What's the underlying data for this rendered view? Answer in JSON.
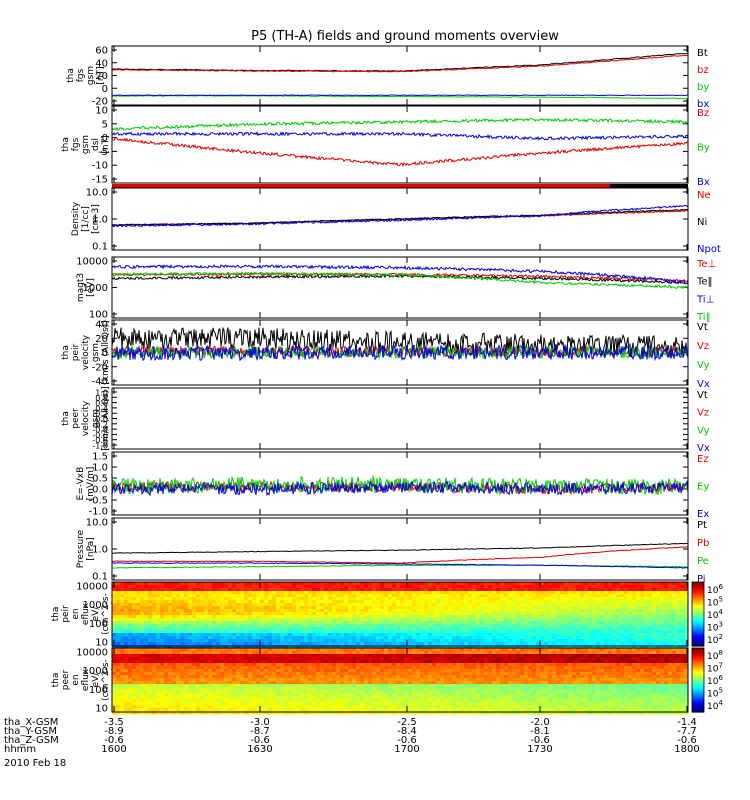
{
  "title": "P5 (TH-A) fields and ground moments overview",
  "colors": {
    "black": "#000000",
    "red": "#e00000",
    "green": "#00cc00",
    "blue": "#0000e0"
  },
  "panels": [
    {
      "key": "fgs_gsm",
      "ylabel": [
        "tha",
        "fgs",
        "gsm",
        "[nT]"
      ],
      "scale": "linear",
      "yticks": [
        "60",
        "40",
        "20",
        "0",
        "-20"
      ],
      "legend": [
        {
          "name": "Bt",
          "color": "#000000"
        },
        {
          "name": "bz",
          "color": "#e00000"
        },
        {
          "name": "by",
          "color": "#00cc00"
        },
        {
          "name": "bx",
          "color": "#0000e0"
        }
      ]
    },
    {
      "key": "fgs_dsl",
      "ylabel": [
        "tha",
        "fgs",
        "gsm",
        "dsl",
        "[nT]"
      ],
      "scale": "linear",
      "yticks": [
        "10",
        "5",
        "0",
        "-5",
        "-10",
        "-15"
      ],
      "legend": [
        {
          "name": "Bz",
          "color": "#e00000"
        },
        {
          "name": "By",
          "color": "#00cc00"
        },
        {
          "name": "Bx",
          "color": "#0000e0"
        }
      ]
    },
    {
      "key": "density",
      "ylabel": [
        "Density",
        "[1/cc]",
        "[cm-3]"
      ],
      "scale": "log",
      "yticks": [
        "10.0",
        "1.0",
        "0.1"
      ],
      "legend": [
        {
          "name": "Ne",
          "color": "#e00000"
        },
        {
          "name": "Ni",
          "color": "#000000"
        },
        {
          "name": "Npot",
          "color": "#0000e0"
        }
      ]
    },
    {
      "key": "temp",
      "ylabel": [
        "magt3",
        "[eV]"
      ],
      "scale": "log",
      "yticks": [
        "10000",
        "1000",
        "100"
      ],
      "legend": [
        {
          "name": "Te⊥",
          "color": "#e00000"
        },
        {
          "name": "Te‖",
          "color": "#000000"
        },
        {
          "name": "Ti⊥",
          "color": "#0000e0"
        },
        {
          "name": "Ti‖",
          "color": "#00cc00"
        }
      ]
    },
    {
      "key": "peir_vel",
      "ylabel": [
        "tha",
        "peir",
        "velocity",
        "gsm",
        "[km/s (All Qs)]"
      ],
      "scale": "linear",
      "yticks": [
        "40",
        "20",
        "0",
        "-20",
        "-40"
      ],
      "legend": [
        {
          "name": "Vt",
          "color": "#000000"
        },
        {
          "name": "Vz",
          "color": "#e00000"
        },
        {
          "name": "Vy",
          "color": "#00cc00"
        },
        {
          "name": "Vx",
          "color": "#0000e0"
        }
      ]
    },
    {
      "key": "peer_vel",
      "ylabel": [
        "tha",
        "peer",
        "velocity",
        "gsm",
        "[km/s (All Qs)]"
      ],
      "scale": "linear",
      "yticks": [
        "1.0",
        "0.8",
        "0.6",
        "0.4",
        "0.2",
        "0.0",
        "-0.2",
        "-0.4",
        "-0.6",
        "-0.8",
        "-1.0"
      ],
      "legend": [
        {
          "name": "Vt",
          "color": "#000000"
        },
        {
          "name": "Vz",
          "color": "#e00000"
        },
        {
          "name": "Vy",
          "color": "#00cc00"
        },
        {
          "name": "Vx",
          "color": "#0000e0"
        }
      ]
    },
    {
      "key": "efield",
      "ylabel": [
        "E=-VxB",
        "[mV/m]"
      ],
      "scale": "linear",
      "yticks": [
        "1.5",
        "1.0",
        "0.5",
        "0.0",
        "-0.5",
        "-1.0"
      ],
      "legend": [
        {
          "name": "Ez",
          "color": "#e00000"
        },
        {
          "name": "Ey",
          "color": "#00cc00"
        },
        {
          "name": "Ex",
          "color": "#0000e0"
        }
      ]
    },
    {
      "key": "pressure",
      "ylabel": [
        "Pressure",
        "[nPa]"
      ],
      "scale": "log",
      "yticks": [
        "10.0",
        "1.0",
        "0.1"
      ],
      "legend": [
        {
          "name": "Pt",
          "color": "#000000"
        },
        {
          "name": "Pb",
          "color": "#e00000"
        },
        {
          "name": "Pe",
          "color": "#00cc00"
        },
        {
          "name": "Pi",
          "color": "#0000e0"
        }
      ]
    },
    {
      "key": "peir_spec",
      "ylabel": [
        "tha",
        "peir",
        "en",
        "eflux",
        "eV/",
        "(cm^2-s-",
        "sr-eV)"
      ],
      "scale": "log",
      "yticks": [
        "10000",
        "1000",
        "100",
        "10"
      ],
      "cbticks": [
        "10^6",
        "10^5",
        "10^4",
        "10^3",
        "10^2"
      ]
    },
    {
      "key": "peer_spec",
      "ylabel": [
        "tha",
        "peer",
        "en",
        "eflux",
        "eV/",
        "(cm^2-s-",
        "sr-eV)"
      ],
      "scale": "log",
      "yticks": [
        "10000",
        "1000",
        "100",
        "10"
      ],
      "cbticks": [
        "10^8",
        "10^7",
        "10^6",
        "10^5",
        "10^4"
      ]
    }
  ],
  "xaxis": {
    "rows": [
      {
        "label": "tha_X-GSM",
        "values": [
          "-3.5",
          "-3.0",
          "-2.5",
          "-2.0",
          "-1.4"
        ]
      },
      {
        "label": "tha_Y-GSM",
        "values": [
          "-8.9",
          "-8.7",
          "-8.4",
          "-8.1",
          "-7.7"
        ]
      },
      {
        "label": "tha_Z-GSM",
        "values": [
          "-0.6",
          "-0.6",
          "-0.6",
          "-0.6",
          "-0.6"
        ]
      },
      {
        "label": "hhmm",
        "values": [
          "1600",
          "1630",
          "1700",
          "1730",
          "1800"
        ]
      }
    ],
    "date": "2010 Feb 18"
  },
  "chart_data": [
    {
      "type": "line",
      "ylabel": "tha fgs gsm [nT]",
      "x": [
        "1600",
        "1630",
        "1700",
        "1730",
        "1800"
      ],
      "ylim": [
        -20,
        60
      ],
      "series": [
        {
          "name": "Bt",
          "values": [
            30,
            28,
            27,
            37,
            55
          ]
        },
        {
          "name": "bz",
          "values": [
            29,
            27,
            26,
            35,
            52
          ]
        },
        {
          "name": "by",
          "values": [
            -12,
            -12,
            -13,
            -14,
            -16
          ]
        },
        {
          "name": "bx",
          "values": [
            -11,
            -11,
            -11,
            -11,
            -11
          ]
        }
      ]
    },
    {
      "type": "line",
      "ylabel": "tha fgs gsm dsl [nT]",
      "x": [
        "1600",
        "1630",
        "1700",
        "1730",
        "1800"
      ],
      "ylim": [
        -17,
        12
      ],
      "series": [
        {
          "name": "Bz",
          "values": [
            0,
            -6,
            -11,
            -6,
            -2
          ]
        },
        {
          "name": "By",
          "values": [
            4,
            6,
            7,
            8,
            7
          ]
        },
        {
          "name": "Bx",
          "values": [
            2,
            2,
            2,
            0,
            1
          ]
        }
      ]
    },
    {
      "type": "line",
      "ylabel": "Density [1/cc] [cm-3]",
      "x": [
        "1600",
        "1630",
        "1700",
        "1730",
        "1800"
      ],
      "ylim": [
        0.1,
        10
      ],
      "log": true,
      "series": [
        {
          "name": "Ne",
          "values": [
            0.6,
            0.7,
            1.0,
            1.3,
            2.0
          ]
        },
        {
          "name": "Ni",
          "values": [
            0.6,
            0.7,
            1.0,
            1.4,
            2.2
          ]
        },
        {
          "name": "Npot",
          "values": [
            0.55,
            0.65,
            0.9,
            1.3,
            3.0
          ]
        }
      ]
    },
    {
      "type": "line",
      "ylabel": "magt3 [eV]",
      "x": [
        "1600",
        "1630",
        "1700",
        "1730",
        "1800"
      ],
      "ylim": [
        100,
        10000
      ],
      "log": true,
      "series": [
        {
          "name": "Te⊥",
          "values": [
            3000,
            3200,
            3100,
            2600,
            1800
          ]
        },
        {
          "name": "Te‖",
          "values": [
            2200,
            2500,
            2700,
            2200,
            1500
          ]
        },
        {
          "name": "Ti⊥",
          "values": [
            6000,
            6200,
            5600,
            4000,
            1500
          ]
        },
        {
          "name": "Ti‖",
          "values": [
            3200,
            3400,
            3000,
            1500,
            1000
          ]
        }
      ]
    },
    {
      "type": "line",
      "ylabel": "tha peir velocity gsm [km/s (All Qs)]",
      "x": [
        "1600",
        "1630",
        "1700",
        "1730",
        "1800"
      ],
      "ylim": [
        -40,
        40
      ],
      "series": [
        {
          "name": "Vt",
          "values": [
            20,
            20,
            14,
            10,
            8
          ]
        },
        {
          "name": "Vz",
          "values": [
            2,
            2,
            1,
            1,
            1
          ]
        },
        {
          "name": "Vy",
          "values": [
            0,
            0,
            0,
            0,
            0
          ]
        },
        {
          "name": "Vx",
          "values": [
            -1,
            -1,
            0,
            0,
            0
          ]
        }
      ]
    },
    {
      "type": "line",
      "ylabel": "tha peer velocity gsm [km/s (All Qs)]",
      "x": [
        "1600",
        "1630",
        "1700",
        "1730",
        "1800"
      ],
      "ylim": [
        -1,
        1
      ],
      "series": []
    },
    {
      "type": "line",
      "ylabel": "E=-VxB [mV/m]",
      "x": [
        "1600",
        "1630",
        "1700",
        "1730",
        "1800"
      ],
      "ylim": [
        -1,
        1.5
      ],
      "series": [
        {
          "name": "Ez",
          "values": [
            0.1,
            0.1,
            0.1,
            0.0,
            0.1
          ]
        },
        {
          "name": "Ey",
          "values": [
            0.1,
            0.2,
            0.2,
            0.1,
            0.1
          ]
        },
        {
          "name": "Ex",
          "values": [
            0.0,
            0.0,
            0.1,
            0.0,
            0.1
          ]
        }
      ]
    },
    {
      "type": "line",
      "ylabel": "Pressure [nPa]",
      "x": [
        "1600",
        "1630",
        "1700",
        "1730",
        "1800"
      ],
      "ylim": [
        0.1,
        10
      ],
      "log": true,
      "series": [
        {
          "name": "Pt",
          "values": [
            0.7,
            0.8,
            0.9,
            1.1,
            1.6
          ]
        },
        {
          "name": "Pb",
          "values": [
            0.35,
            0.35,
            0.3,
            0.5,
            1.2
          ]
        },
        {
          "name": "Pe",
          "values": [
            0.2,
            0.22,
            0.25,
            0.25,
            0.22
          ]
        },
        {
          "name": "Pi",
          "values": [
            0.3,
            0.3,
            0.28,
            0.25,
            0.2
          ]
        }
      ]
    },
    {
      "type": "heatmap",
      "ylabel": "tha peir en eflux eV/(cm^2-s-sr-eV)",
      "ylim": [
        5,
        30000
      ],
      "log": true,
      "colorbar": [
        "10^2",
        "10^6"
      ]
    },
    {
      "type": "heatmap",
      "ylabel": "tha peer en eflux eV/(cm^2-s-sr-eV)",
      "ylim": [
        5,
        30000
      ],
      "log": true,
      "colorbar": [
        "10^4",
        "10^8"
      ]
    }
  ]
}
